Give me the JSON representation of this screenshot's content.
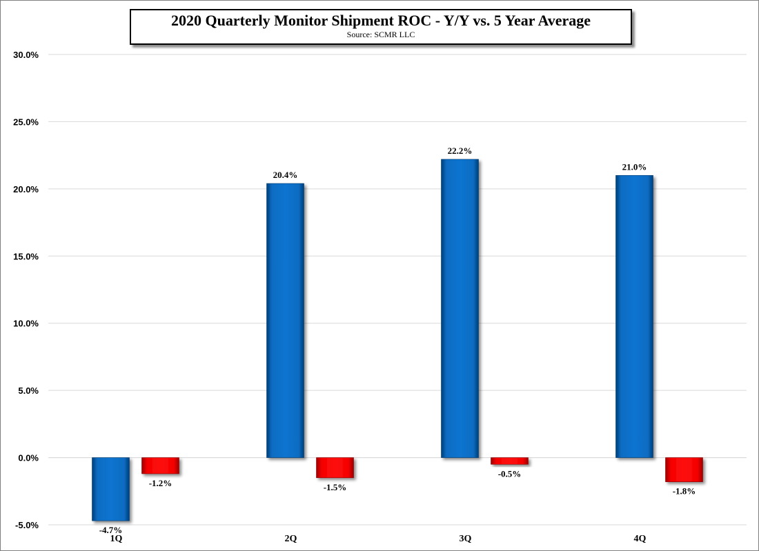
{
  "chart_data": {
    "type": "bar",
    "title": "2020 Quarterly Monitor Shipment ROC - Y/Y vs. 5 Year Average",
    "subtitle": "Source: SCMR LLC",
    "categories": [
      "1Q",
      "2Q",
      "3Q",
      "4Q"
    ],
    "series": [
      {
        "name": "Y/Y",
        "color": "#0070c8",
        "values": [
          -4.7,
          20.4,
          22.2,
          21.0
        ],
        "labels": [
          "-4.7%",
          "20.4%",
          "22.2%",
          "21.0%"
        ]
      },
      {
        "name": "vs. 5 Year Average",
        "color": "#ff0000",
        "values": [
          -1.2,
          -1.5,
          -0.5,
          -1.8
        ],
        "labels": [
          "-1.2%",
          "-1.5%",
          "-0.5%",
          "-1.8%"
        ]
      }
    ],
    "ylim": [
      -5,
      30
    ],
    "yticks": [
      30,
      25,
      20,
      15,
      10,
      5,
      0,
      -5
    ],
    "ytick_labels": [
      "30.0%",
      "25.0%",
      "20.0%",
      "15.0%",
      "10.0%",
      "5.0%",
      "0.0%",
      "-5.0%"
    ],
    "grid": true,
    "legend": "none",
    "xlabel": "",
    "ylabel": ""
  }
}
